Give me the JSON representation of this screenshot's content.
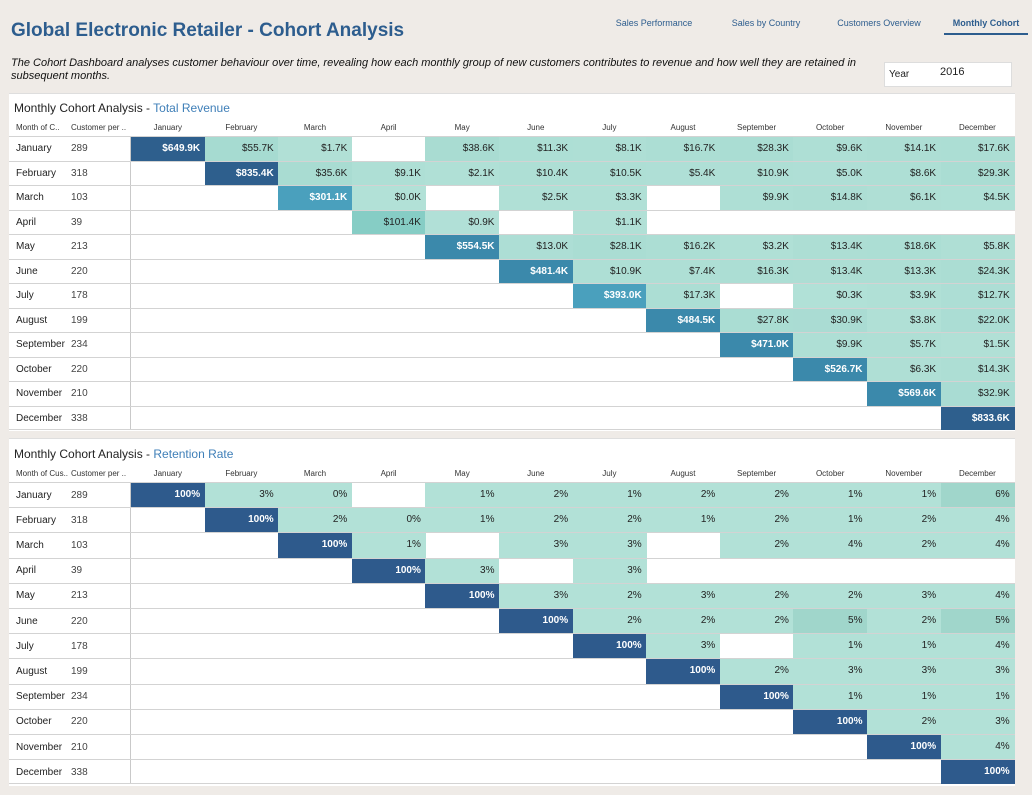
{
  "header": {
    "title": "Global Electronic Retailer - Cohort Analysis",
    "description": "The Cohort Dashboard analyses customer behaviour over time, revealing how each monthly group of new customers contributes to revenue and how well they are retained in subsequent months."
  },
  "nav": {
    "tabs": [
      {
        "label": "Sales Performance",
        "active": false
      },
      {
        "label": "Sales by Country",
        "active": false
      },
      {
        "label": "Customers Overview",
        "active": false
      },
      {
        "label": "Monthly Cohort",
        "active": true
      }
    ]
  },
  "year_filter": {
    "label": "Year",
    "value": "2016"
  },
  "colors": {
    "accent": "#2d5d8e",
    "revenue_scale": [
      "#b2e1d7",
      "#2e5f8d"
    ],
    "retention_light": "#b2e1d7",
    "retention_mid": "#a0d6cb",
    "retention_dark": "#2e5a8c"
  },
  "months": [
    "January",
    "February",
    "March",
    "April",
    "May",
    "June",
    "July",
    "August",
    "September",
    "October",
    "November",
    "December"
  ],
  "revenue": {
    "title_prefix": "Monthly Cohort Analysis - ",
    "title_accent": "Total Revenue",
    "col_month": "Month of C..",
    "col_customers": "Customer per ..",
    "rows": [
      {
        "month": "January",
        "customers": "289",
        "cells": [
          "$649.9K",
          "$55.7K",
          "$1.7K",
          "",
          "$38.6K",
          "$11.3K",
          "$8.1K",
          "$16.7K",
          "$28.3K",
          "$9.6K",
          "$14.1K",
          "$17.6K"
        ],
        "values": [
          649.9,
          55.7,
          1.7,
          null,
          38.6,
          11.3,
          8.1,
          16.7,
          28.3,
          9.6,
          14.1,
          17.6
        ]
      },
      {
        "month": "February",
        "customers": "318",
        "cells": [
          "",
          "$835.4K",
          "$35.6K",
          "$9.1K",
          "$2.1K",
          "$10.4K",
          "$10.5K",
          "$5.4K",
          "$10.9K",
          "$5.0K",
          "$8.6K",
          "$29.3K"
        ],
        "values": [
          null,
          835.4,
          35.6,
          9.1,
          2.1,
          10.4,
          10.5,
          5.4,
          10.9,
          5.0,
          8.6,
          29.3
        ]
      },
      {
        "month": "March",
        "customers": "103",
        "cells": [
          "",
          "",
          "$301.1K",
          "$0.0K",
          "",
          "$2.5K",
          "$3.3K",
          "",
          "$9.9K",
          "$14.8K",
          "$6.1K",
          "$4.5K"
        ],
        "values": [
          null,
          null,
          301.1,
          0.0,
          null,
          2.5,
          3.3,
          null,
          9.9,
          14.8,
          6.1,
          4.5
        ]
      },
      {
        "month": "April",
        "customers": "39",
        "cells": [
          "",
          "",
          "",
          "$101.4K",
          "$0.9K",
          "",
          "$1.1K",
          "",
          "",
          "",
          "",
          ""
        ],
        "values": [
          null,
          null,
          null,
          101.4,
          0.9,
          null,
          1.1,
          null,
          null,
          null,
          null,
          null
        ]
      },
      {
        "month": "May",
        "customers": "213",
        "cells": [
          "",
          "",
          "",
          "",
          "$554.5K",
          "$13.0K",
          "$28.1K",
          "$16.2K",
          "$3.2K",
          "$13.4K",
          "$18.6K",
          "$5.8K"
        ],
        "values": [
          null,
          null,
          null,
          null,
          554.5,
          13.0,
          28.1,
          16.2,
          3.2,
          13.4,
          18.6,
          5.8
        ]
      },
      {
        "month": "June",
        "customers": "220",
        "cells": [
          "",
          "",
          "",
          "",
          "",
          "$481.4K",
          "$10.9K",
          "$7.4K",
          "$16.3K",
          "$13.4K",
          "$13.3K",
          "$24.3K"
        ],
        "values": [
          null,
          null,
          null,
          null,
          null,
          481.4,
          10.9,
          7.4,
          16.3,
          13.4,
          13.3,
          24.3
        ]
      },
      {
        "month": "July",
        "customers": "178",
        "cells": [
          "",
          "",
          "",
          "",
          "",
          "",
          "$393.0K",
          "$17.3K",
          "",
          "$0.3K",
          "$3.9K",
          "$12.7K"
        ],
        "values": [
          null,
          null,
          null,
          null,
          null,
          null,
          393.0,
          17.3,
          null,
          0.3,
          3.9,
          12.7
        ]
      },
      {
        "month": "August",
        "customers": "199",
        "cells": [
          "",
          "",
          "",
          "",
          "",
          "",
          "",
          "$484.5K",
          "$27.8K",
          "$30.9K",
          "$3.8K",
          "$22.0K"
        ],
        "values": [
          null,
          null,
          null,
          null,
          null,
          null,
          null,
          484.5,
          27.8,
          30.9,
          3.8,
          22.0
        ]
      },
      {
        "month": "September",
        "customers": "234",
        "cells": [
          "",
          "",
          "",
          "",
          "",
          "",
          "",
          "",
          "$471.0K",
          "$9.9K",
          "$5.7K",
          "$1.5K"
        ],
        "values": [
          null,
          null,
          null,
          null,
          null,
          null,
          null,
          null,
          471.0,
          9.9,
          5.7,
          1.5
        ]
      },
      {
        "month": "October",
        "customers": "220",
        "cells": [
          "",
          "",
          "",
          "",
          "",
          "",
          "",
          "",
          "",
          "$526.7K",
          "$6.3K",
          "$14.3K"
        ],
        "values": [
          null,
          null,
          null,
          null,
          null,
          null,
          null,
          null,
          null,
          526.7,
          6.3,
          14.3
        ]
      },
      {
        "month": "November",
        "customers": "210",
        "cells": [
          "",
          "",
          "",
          "",
          "",
          "",
          "",
          "",
          "",
          "",
          "$569.6K",
          "$32.9K"
        ],
        "values": [
          null,
          null,
          null,
          null,
          null,
          null,
          null,
          null,
          null,
          null,
          569.6,
          32.9
        ]
      },
      {
        "month": "December",
        "customers": "338",
        "cells": [
          "",
          "",
          "",
          "",
          "",
          "",
          "",
          "",
          "",
          "",
          "",
          "$833.6K"
        ],
        "values": [
          null,
          null,
          null,
          null,
          null,
          null,
          null,
          null,
          null,
          null,
          null,
          833.6
        ]
      }
    ]
  },
  "retention": {
    "title_prefix": "Monthly Cohort Analysis - ",
    "title_accent": "Retention Rate",
    "col_month": "Month of Cus..",
    "col_customers": "Customer per ..",
    "rows": [
      {
        "month": "January",
        "customers": "289",
        "cells": [
          "100%",
          "3%",
          "0%",
          "",
          "1%",
          "2%",
          "1%",
          "2%",
          "2%",
          "1%",
          "1%",
          "6%"
        ]
      },
      {
        "month": "February",
        "customers": "318",
        "cells": [
          "",
          "100%",
          "2%",
          "0%",
          "1%",
          "2%",
          "2%",
          "1%",
          "2%",
          "1%",
          "2%",
          "4%"
        ]
      },
      {
        "month": "March",
        "customers": "103",
        "cells": [
          "",
          "",
          "100%",
          "1%",
          "",
          "3%",
          "3%",
          "",
          "2%",
          "4%",
          "2%",
          "4%"
        ]
      },
      {
        "month": "April",
        "customers": "39",
        "cells": [
          "",
          "",
          "",
          "100%",
          "3%",
          "",
          "3%",
          "",
          "",
          "",
          "",
          ""
        ]
      },
      {
        "month": "May",
        "customers": "213",
        "cells": [
          "",
          "",
          "",
          "",
          "100%",
          "3%",
          "2%",
          "3%",
          "2%",
          "2%",
          "3%",
          "4%"
        ]
      },
      {
        "month": "June",
        "customers": "220",
        "cells": [
          "",
          "",
          "",
          "",
          "",
          "100%",
          "2%",
          "2%",
          "2%",
          "5%",
          "2%",
          "5%"
        ]
      },
      {
        "month": "July",
        "customers": "178",
        "cells": [
          "",
          "",
          "",
          "",
          "",
          "",
          "100%",
          "3%",
          "",
          "1%",
          "1%",
          "4%"
        ]
      },
      {
        "month": "August",
        "customers": "199",
        "cells": [
          "",
          "",
          "",
          "",
          "",
          "",
          "",
          "100%",
          "2%",
          "3%",
          "3%",
          "3%"
        ]
      },
      {
        "month": "September",
        "customers": "234",
        "cells": [
          "",
          "",
          "",
          "",
          "",
          "",
          "",
          "",
          "100%",
          "1%",
          "1%",
          "1%"
        ]
      },
      {
        "month": "October",
        "customers": "220",
        "cells": [
          "",
          "",
          "",
          "",
          "",
          "",
          "",
          "",
          "",
          "100%",
          "2%",
          "3%"
        ]
      },
      {
        "month": "November",
        "customers": "210",
        "cells": [
          "",
          "",
          "",
          "",
          "",
          "",
          "",
          "",
          "",
          "",
          "100%",
          "4%"
        ]
      },
      {
        "month": "December",
        "customers": "338",
        "cells": [
          "",
          "",
          "",
          "",
          "",
          "",
          "",
          "",
          "",
          "",
          "",
          "100%"
        ]
      }
    ]
  }
}
